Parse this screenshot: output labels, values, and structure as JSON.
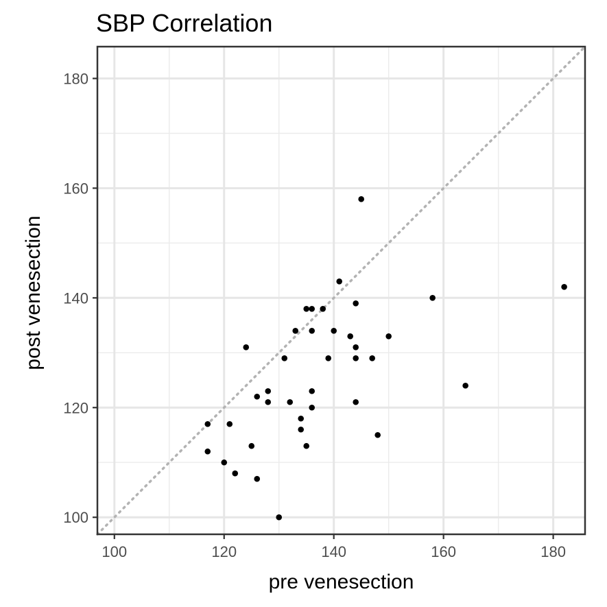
{
  "chart_data": {
    "type": "scatter",
    "title": "SBP   Correlation",
    "xlabel": "pre venesection",
    "ylabel": "post venesection",
    "xlim": [
      96.9,
      185.8
    ],
    "ylim": [
      96.9,
      185.8
    ],
    "x_ticks": [
      100,
      120,
      140,
      160,
      180
    ],
    "y_ticks": [
      100,
      120,
      140,
      160,
      180
    ],
    "x_minor_ticks": [
      110,
      130,
      150,
      170
    ],
    "y_minor_ticks": [
      110,
      130,
      150,
      170
    ],
    "grid": true,
    "reference_line": {
      "type": "identity",
      "style": "dotted",
      "color": "#b3b3b3"
    },
    "point_color": "#000000",
    "points": [
      {
        "x": 117,
        "y": 117
      },
      {
        "x": 117,
        "y": 112
      },
      {
        "x": 120,
        "y": 110
      },
      {
        "x": 121,
        "y": 117
      },
      {
        "x": 122,
        "y": 108
      },
      {
        "x": 124,
        "y": 131
      },
      {
        "x": 125,
        "y": 113
      },
      {
        "x": 126,
        "y": 122
      },
      {
        "x": 126,
        "y": 107
      },
      {
        "x": 128,
        "y": 123
      },
      {
        "x": 128,
        "y": 121
      },
      {
        "x": 130,
        "y": 100
      },
      {
        "x": 131,
        "y": 129
      },
      {
        "x": 132,
        "y": 121
      },
      {
        "x": 133,
        "y": 134
      },
      {
        "x": 134,
        "y": 118
      },
      {
        "x": 134,
        "y": 116
      },
      {
        "x": 135,
        "y": 138
      },
      {
        "x": 135,
        "y": 113
      },
      {
        "x": 136,
        "y": 138
      },
      {
        "x": 136,
        "y": 134
      },
      {
        "x": 136,
        "y": 123
      },
      {
        "x": 136,
        "y": 120
      },
      {
        "x": 138,
        "y": 138
      },
      {
        "x": 139,
        "y": 129
      },
      {
        "x": 140,
        "y": 134
      },
      {
        "x": 141,
        "y": 143
      },
      {
        "x": 143,
        "y": 133
      },
      {
        "x": 144,
        "y": 139
      },
      {
        "x": 144,
        "y": 131
      },
      {
        "x": 144,
        "y": 129
      },
      {
        "x": 144,
        "y": 121
      },
      {
        "x": 145,
        "y": 158
      },
      {
        "x": 147,
        "y": 129
      },
      {
        "x": 148,
        "y": 115
      },
      {
        "x": 150,
        "y": 133
      },
      {
        "x": 158,
        "y": 140
      },
      {
        "x": 164,
        "y": 124
      },
      {
        "x": 182,
        "y": 142
      }
    ]
  }
}
